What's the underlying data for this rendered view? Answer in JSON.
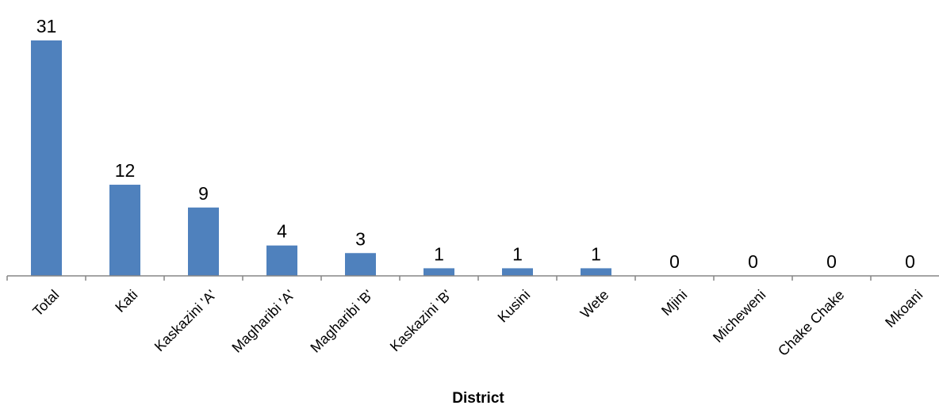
{
  "chart_data": {
    "type": "bar",
    "title": "",
    "xlabel": "District",
    "ylabel": "",
    "categories": [
      "Total",
      "Kati",
      "Kaskazini 'A'",
      "Magharibi 'A'",
      "Magharibi 'B'",
      "Kaskazini 'B'",
      "Kusini",
      "Wete",
      "Mjini",
      "Micheweni",
      "Chake Chake",
      "Mkoani"
    ],
    "values": [
      31,
      12,
      9,
      4,
      3,
      1,
      1,
      1,
      0,
      0,
      0,
      0
    ],
    "ylim": [
      0,
      31
    ],
    "grid": false,
    "legend": "none",
    "data_labels": true,
    "bar_color": "#4f81bd",
    "axis_color": "#868686"
  }
}
